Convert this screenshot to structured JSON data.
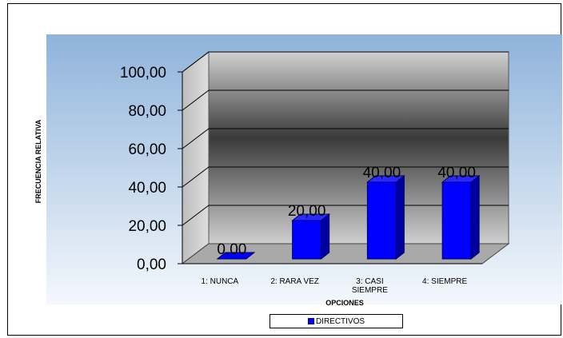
{
  "chart_data": {
    "type": "bar",
    "title": "",
    "xlabel": "OPCIONES",
    "ylabel": "FRECUENCIA RELATIVA",
    "categories": [
      [
        "1: NUNCA"
      ],
      [
        "2: RARA VEZ"
      ],
      [
        "3: CASI",
        "SIEMPRE"
      ],
      [
        "4: SIEMPRE"
      ]
    ],
    "series": [
      {
        "name": "DIRECTIVOS",
        "values": [
          0,
          20,
          40,
          40
        ]
      }
    ],
    "data_labels": [
      "0,00",
      "20,00",
      "40,00",
      "40,00"
    ],
    "ylim": [
      0,
      100
    ],
    "yticks": [
      "0,00",
      "20,00",
      "40,00",
      "60,00",
      "80,00",
      "100,00"
    ],
    "grid": true,
    "legend": "bottom",
    "colors": {
      "bar": "#0000ff",
      "bar_side": "#0000a0",
      "plot_bg_top": "#8fb3db",
      "plot_bg_bottom": "#f4f8fc",
      "wall_light": "#c8c8c8",
      "wall_dark": "#3c3c3c"
    }
  }
}
